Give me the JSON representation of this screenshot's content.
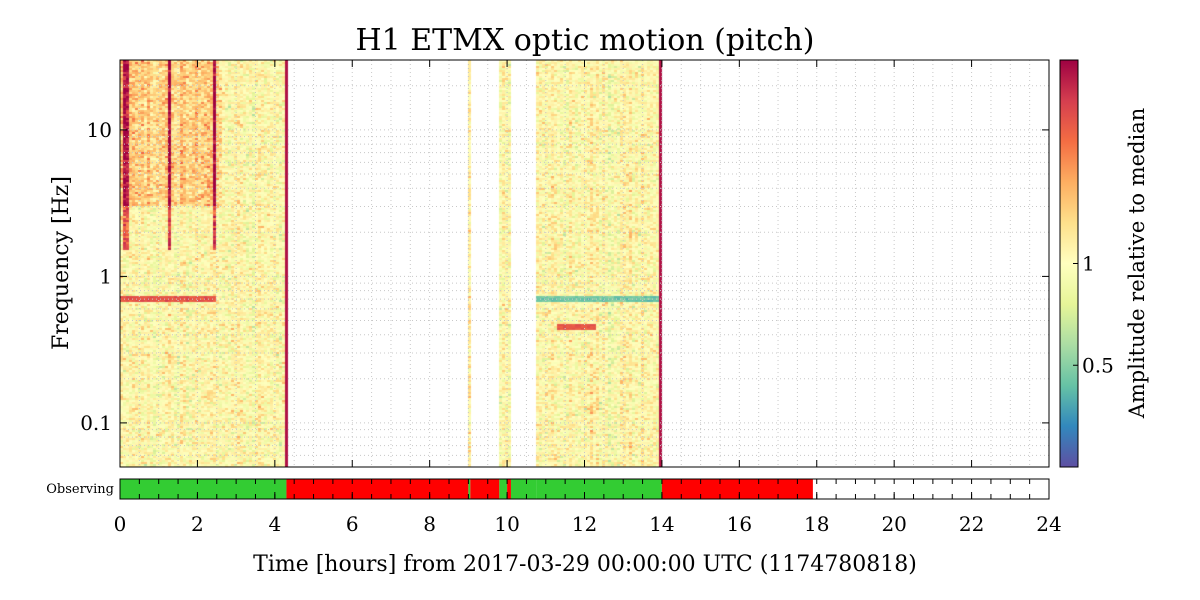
{
  "chart_data": {
    "type": "heatmap",
    "title": "H1 ETMX optic motion (pitch)",
    "xlabel": "Time [hours] from 2017-03-29 00:00:00 UTC (1174780818)",
    "ylabel": "Frequency [Hz]",
    "xlim": [
      0,
      24
    ],
    "ylim": [
      0.05,
      30
    ],
    "yscale": "log",
    "grid": true,
    "x_ticks": [
      0,
      2,
      4,
      6,
      8,
      10,
      12,
      14,
      16,
      18,
      20,
      22,
      24
    ],
    "x_tick_labels": [
      "0",
      "2",
      "4",
      "6",
      "8",
      "10",
      "12",
      "14",
      "16",
      "18",
      "20",
      "22",
      "24"
    ],
    "y_ticks": [
      0.1,
      1,
      10
    ],
    "y_tick_labels": [
      "0.1",
      "1",
      "10"
    ],
    "colorbar": {
      "label": "Amplitude relative to median",
      "scale": "log",
      "range": [
        0.25,
        4
      ],
      "ticks": [
        0.5,
        1
      ],
      "tick_labels": [
        "0.5",
        "1"
      ],
      "colormap": [
        "#5e4fa2",
        "#3288bd",
        "#66c2a5",
        "#abdda4",
        "#e6f598",
        "#ffffbf",
        "#fee08b",
        "#fdae61",
        "#f46d43",
        "#d53e4f",
        "#9e0142"
      ]
    },
    "data_segments": [
      {
        "start": 0.0,
        "end": 4.35
      },
      {
        "start": 9.0,
        "end": 9.05
      },
      {
        "start": 9.8,
        "end": 10.1
      },
      {
        "start": 10.75,
        "end": 14.0
      }
    ],
    "features": [
      {
        "name": "0.7 Hz line",
        "start": 0.0,
        "end": 2.5,
        "freq": 0.7,
        "level": "high"
      },
      {
        "name": "0.7 Hz line",
        "start": 10.75,
        "end": 14.0,
        "freq": 0.7,
        "level": "low"
      },
      {
        "name": "0.45 Hz excess",
        "start": 11.3,
        "end": 12.3,
        "freq": 0.45,
        "level": "high"
      }
    ],
    "state_bar": {
      "label": "Observing",
      "segments": [
        {
          "start": 0.0,
          "end": 4.3,
          "state": "active"
        },
        {
          "start": 4.3,
          "end": 9.0,
          "state": "inactive"
        },
        {
          "start": 9.0,
          "end": 9.05,
          "state": "active"
        },
        {
          "start": 9.05,
          "end": 9.8,
          "state": "inactive"
        },
        {
          "start": 9.8,
          "end": 10.0,
          "state": "active"
        },
        {
          "start": 10.0,
          "end": 10.1,
          "state": "inactive"
        },
        {
          "start": 10.1,
          "end": 10.75,
          "state": "active"
        },
        {
          "start": 10.75,
          "end": 14.0,
          "state": "active"
        },
        {
          "start": 14.0,
          "end": 17.9,
          "state": "inactive"
        }
      ],
      "colors": {
        "active": "#33cc33",
        "inactive": "#ff0000"
      }
    }
  }
}
